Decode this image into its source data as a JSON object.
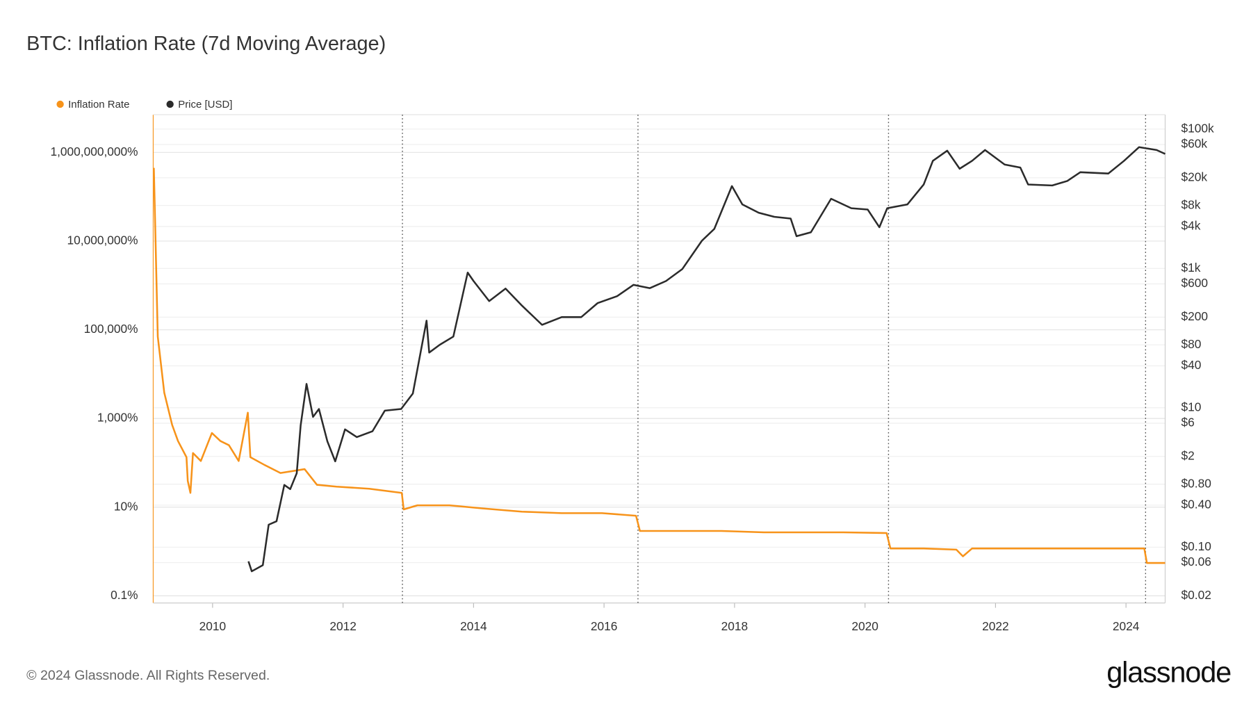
{
  "chart_data": {
    "type": "line",
    "title": "BTC: Inflation Rate (7d Moving Average)",
    "footer": "© 2024 Glassnode. All Rights Reserved.",
    "brand": "glassnode",
    "xlim": [
      2009.09,
      2024.6
    ],
    "xticks": [
      2010,
      2012,
      2014,
      2016,
      2018,
      2020,
      2022,
      2024
    ],
    "log_y": true,
    "ylim": [
      0.069,
      7100000000
    ],
    "yticks": [
      {
        "value": 0.1,
        "label": "0.1%"
      },
      {
        "value": 10,
        "label": "10%"
      },
      {
        "value": 1000,
        "label": "1,000%"
      },
      {
        "value": 100000,
        "label": "100,000%"
      },
      {
        "value": 10000000,
        "label": "10,000,000%"
      },
      {
        "value": 1000000000,
        "label": "1,000,000,000%"
      }
    ],
    "log_y2": true,
    "y2lim": [
      0.0158,
      161000
    ],
    "y2ticks": [
      {
        "value": 100000,
        "label": "$100k"
      },
      {
        "value": 60000,
        "label": "$60k"
      },
      {
        "value": 20000,
        "label": "$20k"
      },
      {
        "value": 8000,
        "label": "$8k"
      },
      {
        "value": 4000,
        "label": "$4k"
      },
      {
        "value": 1000,
        "label": "$1k"
      },
      {
        "value": 600,
        "label": "$600"
      },
      {
        "value": 200,
        "label": "$200"
      },
      {
        "value": 80,
        "label": "$80"
      },
      {
        "value": 40,
        "label": "$40"
      },
      {
        "value": 10,
        "label": "$10"
      },
      {
        "value": 6,
        "label": "$6"
      },
      {
        "value": 2,
        "label": "$2"
      },
      {
        "value": 0.8,
        "label": "$0.80"
      },
      {
        "value": 0.4,
        "label": "$0.40"
      },
      {
        "value": 0.1,
        "label": "$0.10"
      },
      {
        "value": 0.06,
        "label": "$0.06"
      },
      {
        "value": 0.02,
        "label": "$0.02"
      }
    ],
    "grid": true,
    "halvings": [
      2012.91,
      2016.52,
      2020.36,
      2024.3
    ],
    "series": [
      {
        "name": "Inflation Rate",
        "color": "#f7931a",
        "axis": "y",
        "x": [
          2009.1,
          2009.16,
          2009.26,
          2009.38,
          2009.47,
          2009.6,
          2009.62,
          2009.66,
          2009.7,
          2009.82,
          2009.99,
          2010.12,
          2010.25,
          2010.4,
          2010.54,
          2010.58,
          2010.8,
          2011.04,
          2011.41,
          2011.6,
          2011.9,
          2012.4,
          2012.9,
          2012.93,
          2013.14,
          2013.63,
          2014.13,
          2014.74,
          2015.35,
          2015.97,
          2016.49,
          2016.55,
          2017.2,
          2017.8,
          2018.45,
          2019.06,
          2019.67,
          2020.33,
          2020.39,
          2020.9,
          2021.4,
          2021.5,
          2021.64,
          2022.75,
          2024.28,
          2024.32,
          2024.6
        ],
        "values": [
          450000000,
          70000,
          3800,
          720,
          310,
          134,
          39,
          21,
          166,
          110,
          470,
          310,
          250,
          110,
          1350,
          134,
          89,
          59,
          72,
          32,
          29,
          26,
          21,
          8.9,
          11,
          11,
          9.4,
          7.9,
          7.3,
          7.3,
          6.4,
          2.9,
          2.9,
          2.9,
          2.7,
          2.7,
          2.7,
          2.6,
          1.17,
          1.17,
          1.1,
          0.78,
          1.17,
          1.17,
          1.17,
          0.55,
          0.55
        ]
      },
      {
        "name": "Price [USD]",
        "color": "#2b2b2b",
        "axis": "y2",
        "x": [
          2010.55,
          2010.6,
          2010.77,
          2010.86,
          2010.98,
          2011.1,
          2011.19,
          2011.29,
          2011.35,
          2011.44,
          2011.54,
          2011.63,
          2011.76,
          2011.88,
          2012.03,
          2012.21,
          2012.45,
          2012.64,
          2012.89,
          2013.07,
          2013.28,
          2013.32,
          2013.48,
          2013.69,
          2013.91,
          2014.0,
          2014.24,
          2014.49,
          2014.73,
          2015.05,
          2015.35,
          2015.65,
          2015.9,
          2016.2,
          2016.45,
          2016.7,
          2016.95,
          2017.2,
          2017.5,
          2017.69,
          2017.96,
          2018.12,
          2018.37,
          2018.61,
          2018.86,
          2018.95,
          2019.17,
          2019.48,
          2019.79,
          2020.04,
          2020.22,
          2020.34,
          2020.65,
          2020.9,
          2021.04,
          2021.26,
          2021.45,
          2021.64,
          2021.84,
          2022.14,
          2022.38,
          2022.5,
          2022.87,
          2023.1,
          2023.3,
          2023.73,
          2023.97,
          2024.2,
          2024.47,
          2024.6
        ],
        "values": [
          0.0625,
          0.045,
          0.055,
          0.21,
          0.235,
          0.78,
          0.68,
          1.15,
          5.6,
          22,
          7.4,
          9.6,
          3.3,
          1.7,
          4.9,
          3.8,
          4.6,
          9.1,
          9.6,
          16,
          178,
          62,
          80,
          105,
          870,
          660,
          340,
          514,
          300,
          155,
          200,
          200,
          317,
          400,
          580,
          520,
          660,
          980,
          2500,
          3700,
          15200,
          8300,
          6300,
          5500,
          5200,
          2900,
          3300,
          10000,
          7300,
          7000,
          3900,
          7300,
          8300,
          16000,
          35000,
          49000,
          27000,
          35000,
          50000,
          31000,
          28000,
          16000,
          15500,
          18000,
          24000,
          23000,
          35000,
          55000,
          50000,
          44000
        ]
      }
    ]
  }
}
